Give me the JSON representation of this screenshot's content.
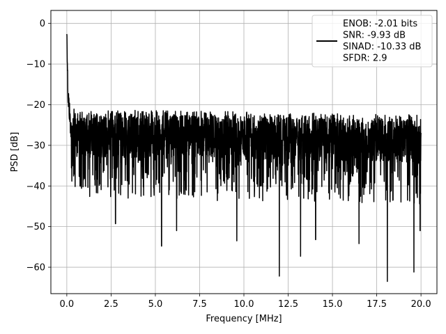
{
  "chart_data": {
    "type": "line",
    "title": "",
    "xlabel": "Frequency [MHz]",
    "ylabel": "PSD [dB]",
    "xlim": [
      -0.9,
      20.9
    ],
    "ylim": [
      -66.5,
      3.2
    ],
    "x_ticks": [
      0.0,
      2.5,
      5.0,
      7.5,
      10.0,
      12.5,
      15.0,
      17.5,
      20.0
    ],
    "x_tick_labels": [
      "0.0",
      "2.5",
      "5.0",
      "7.5",
      "10.0",
      "12.5",
      "15.0",
      "17.5",
      "20.0"
    ],
    "y_ticks": [
      0,
      -10,
      -20,
      -30,
      -40,
      -50,
      -60
    ],
    "y_tick_labels": [
      "0",
      "−10",
      "−20",
      "−30",
      "−40",
      "−50",
      "−60"
    ],
    "grid": true,
    "legend_position": "top-right",
    "line_color": "#000000",
    "grid_color": "#b0b0b0",
    "series": [
      {
        "name": "ENOB: -2.01 bits\nSNR: -9.93 dB\nSINAD: -10.33 dB\nSFDR: 2.9",
        "x_start": 0.0,
        "x_end": 20.0,
        "dc_peak_db": 0.0,
        "noise_floor_db": -29,
        "upper_envelope_db": -21,
        "lower_envelope_db": -45,
        "minimum_db": -63.5,
        "deep_nulls": [
          {
            "x": 2.1,
            "y": -36.2
          },
          {
            "x": 2.75,
            "y": -49.3
          },
          {
            "x": 5.35,
            "y": -54.8
          },
          {
            "x": 6.2,
            "y": -51
          },
          {
            "x": 9.6,
            "y": -53.5
          },
          {
            "x": 12.0,
            "y": -62.2
          },
          {
            "x": 13.2,
            "y": -57.3
          },
          {
            "x": 14.05,
            "y": -53.2
          },
          {
            "x": 16.5,
            "y": -54.2
          },
          {
            "x": 18.1,
            "y": -63.5
          },
          {
            "x": 19.6,
            "y": -61.2
          },
          {
            "x": 19.95,
            "y": -51
          }
        ]
      }
    ]
  }
}
